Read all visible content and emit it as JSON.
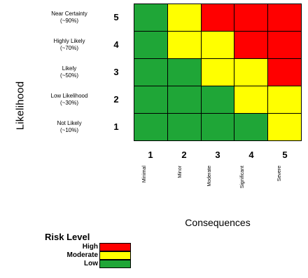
{
  "axes": {
    "y_title": "Likelihood",
    "x_title": "Consequences"
  },
  "likelihood_rows": [
    {
      "level": "5",
      "label": "Near Certainty",
      "pct": "(~90%)"
    },
    {
      "level": "4",
      "label": "Highly Likely",
      "pct": "(~70%)"
    },
    {
      "level": "3",
      "label": "Likely",
      "pct": "(~50%)"
    },
    {
      "level": "2",
      "label": "Low Likelihood",
      "pct": "(~30%)"
    },
    {
      "level": "1",
      "label": "Not Likely",
      "pct": "(~10%)"
    }
  ],
  "consequence_cols": [
    {
      "level": "1",
      "label": "Minimal"
    },
    {
      "level": "2",
      "label": "Minor"
    },
    {
      "level": "3",
      "label": "Moderate"
    },
    {
      "level": "4",
      "label": "Significant"
    },
    {
      "level": "5",
      "label": "Severe"
    }
  ],
  "matrix": [
    [
      "low",
      "moderate",
      "high",
      "high",
      "high"
    ],
    [
      "low",
      "moderate",
      "moderate",
      "high",
      "high"
    ],
    [
      "low",
      "low",
      "moderate",
      "moderate",
      "high"
    ],
    [
      "low",
      "low",
      "low",
      "moderate",
      "moderate"
    ],
    [
      "low",
      "low",
      "low",
      "low",
      "moderate"
    ]
  ],
  "colors": {
    "high": "#ff0000",
    "moderate": "#ffff00",
    "low": "#1fa637"
  },
  "legend": {
    "title": "Risk Level",
    "items": [
      {
        "key": "high",
        "label": "High"
      },
      {
        "key": "moderate",
        "label": "Moderate"
      },
      {
        "key": "low",
        "label": "Low"
      }
    ]
  }
}
